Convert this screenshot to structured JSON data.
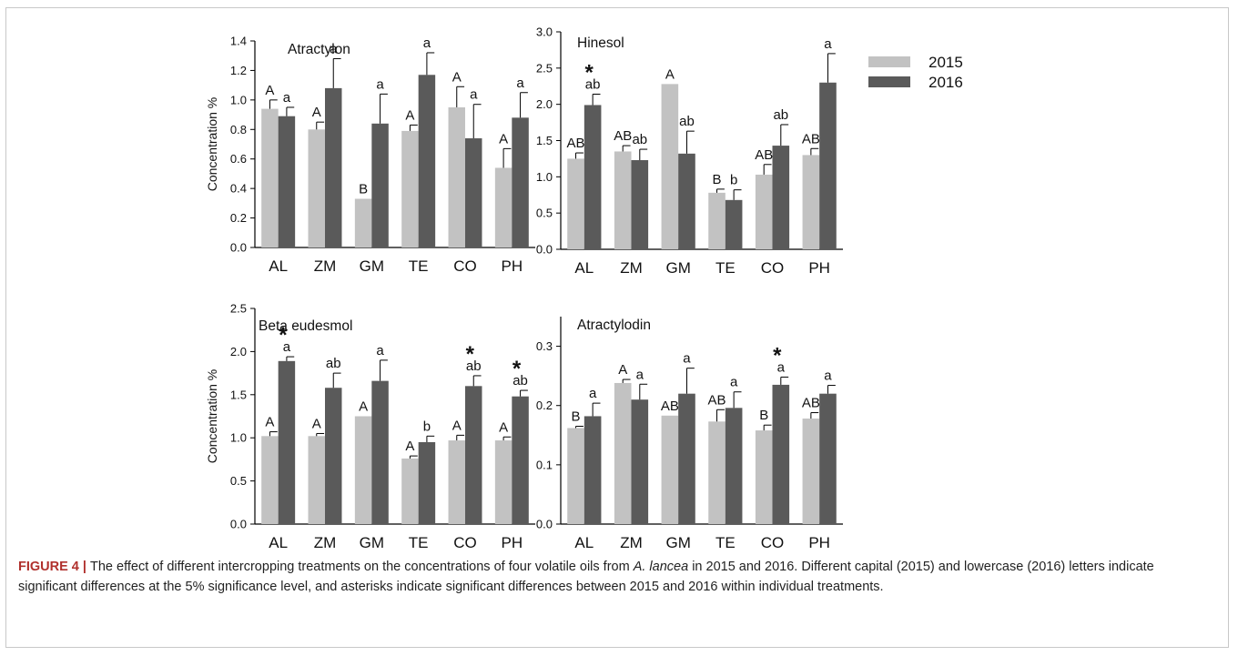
{
  "legend": {
    "items": [
      {
        "label": "2015",
        "color": "#c2c2c2"
      },
      {
        "label": "2016",
        "color": "#5a5a5a"
      }
    ]
  },
  "chart_data": [
    {
      "type": "bar",
      "title": "Atractylon",
      "ylabel": "Concentration %",
      "categories": [
        "AL",
        "ZM",
        "GM",
        "TE",
        "CO",
        "PH"
      ],
      "ylim": [
        0,
        1.4
      ],
      "yticks": [
        "0.0",
        "0.2",
        "0.4",
        "0.6",
        "0.8",
        "1.0",
        "1.2",
        "1.4"
      ],
      "series": [
        {
          "name": "2015",
          "values": [
            0.94,
            0.8,
            0.33,
            0.79,
            0.95,
            0.54
          ],
          "errors": [
            0.06,
            0.05,
            0.0,
            0.04,
            0.14,
            0.13
          ],
          "letters": [
            "A",
            "A",
            "B",
            "A",
            "A",
            "A"
          ]
        },
        {
          "name": "2016",
          "values": [
            0.89,
            1.08,
            0.84,
            1.17,
            0.74,
            0.88
          ],
          "errors": [
            0.06,
            0.2,
            0.2,
            0.15,
            0.23,
            0.17
          ],
          "letters": [
            "a",
            "a",
            "a",
            "a",
            "a",
            "a"
          ]
        }
      ],
      "asterisks": [
        false,
        false,
        false,
        false,
        false,
        false
      ]
    },
    {
      "type": "bar",
      "title": "Hinesol",
      "ylabel": "",
      "categories": [
        "AL",
        "ZM",
        "GM",
        "TE",
        "CO",
        "PH"
      ],
      "ylim": [
        0,
        3.0
      ],
      "yticks": [
        "0.0",
        "0.5",
        "1.0",
        "1.5",
        "2.0",
        "2.5",
        "3.0"
      ],
      "series": [
        {
          "name": "2015",
          "values": [
            1.25,
            1.35,
            2.28,
            0.78,
            1.03,
            1.3
          ],
          "errors": [
            0.08,
            0.08,
            0.0,
            0.05,
            0.14,
            0.09
          ],
          "letters": [
            "AB",
            "AB",
            "A",
            "B",
            "AB",
            "AB"
          ]
        },
        {
          "name": "2016",
          "values": [
            1.99,
            1.23,
            1.32,
            0.68,
            1.43,
            2.3
          ],
          "errors": [
            0.15,
            0.15,
            0.31,
            0.14,
            0.29,
            0.4
          ],
          "letters": [
            "ab",
            "ab",
            "ab",
            "b",
            "ab",
            "a"
          ]
        }
      ],
      "asterisks": [
        true,
        false,
        false,
        false,
        false,
        false
      ]
    },
    {
      "type": "bar",
      "title": "Beta eudesmol",
      "ylabel": "Concentration %",
      "categories": [
        "AL",
        "ZM",
        "GM",
        "TE",
        "CO",
        "PH"
      ],
      "ylim": [
        0,
        2.5
      ],
      "yticks": [
        "0.0",
        "0.5",
        "1.0",
        "1.5",
        "2.0",
        "2.5"
      ],
      "series": [
        {
          "name": "2015",
          "values": [
            1.02,
            1.02,
            1.25,
            0.76,
            0.97,
            0.97
          ],
          "errors": [
            0.05,
            0.03,
            0.0,
            0.03,
            0.06,
            0.04
          ],
          "letters": [
            "A",
            "A",
            "A",
            "A",
            "A",
            "A"
          ]
        },
        {
          "name": "2016",
          "values": [
            1.89,
            1.58,
            1.66,
            0.95,
            1.6,
            1.48
          ],
          "errors": [
            0.05,
            0.17,
            0.24,
            0.07,
            0.12,
            0.07
          ],
          "letters": [
            "a",
            "ab",
            "a",
            "b",
            "ab",
            "ab"
          ]
        }
      ],
      "asterisks": [
        true,
        false,
        false,
        false,
        true,
        true
      ]
    },
    {
      "type": "bar",
      "title": "Atractylodin",
      "ylabel": "",
      "categories": [
        "AL",
        "ZM",
        "GM",
        "TE",
        "CO",
        "PH"
      ],
      "ylim": [
        0,
        0.35
      ],
      "yticks": [
        "0.0",
        "0.1",
        "0.2",
        "0.3"
      ],
      "series": [
        {
          "name": "2015",
          "values": [
            0.162,
            0.238,
            0.183,
            0.173,
            0.158,
            0.178
          ],
          "errors": [
            0.003,
            0.006,
            0.0,
            0.02,
            0.009,
            0.01
          ],
          "letters": [
            "B",
            "A",
            "AB",
            "AB",
            "B",
            "AB"
          ]
        },
        {
          "name": "2016",
          "values": [
            0.182,
            0.21,
            0.22,
            0.196,
            0.235,
            0.22
          ],
          "errors": [
            0.022,
            0.026,
            0.043,
            0.027,
            0.013,
            0.014
          ],
          "letters": [
            "a",
            "a",
            "a",
            "a",
            "a",
            "a"
          ]
        }
      ],
      "asterisks": [
        false,
        false,
        false,
        false,
        true,
        false
      ]
    }
  ],
  "caption": {
    "label": "FIGURE 4",
    "separator": " | ",
    "text_before": "The effect of different intercropping treatments on the concentrations of four volatile oils from ",
    "species": "A. lancea",
    "text_after": " in 2015 and 2016. Different capital (2015) and lowercase (2016) letters indicate significant differences at the 5% significance level, and asterisks indicate significant differences between 2015 and 2016 within individual treatments."
  }
}
